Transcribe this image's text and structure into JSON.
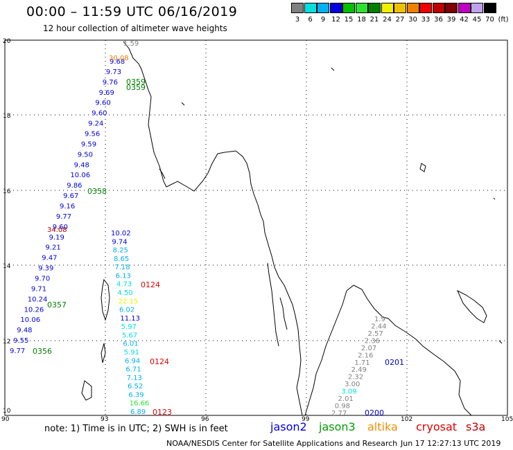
{
  "header": {
    "title": "00:00 – 11:59 UTC 06/16/2019",
    "subtitle": "12 hour collection of altimeter wave heights"
  },
  "legend": {
    "unit": "(ft)",
    "bins": [
      {
        "label": "3",
        "color": "#808080"
      },
      {
        "label": "6",
        "color": "#00e0e0"
      },
      {
        "label": "9",
        "color": "#00b0f0"
      },
      {
        "label": "12",
        "color": "#0000e0"
      },
      {
        "label": "15",
        "color": "#00c000"
      },
      {
        "label": "18",
        "color": "#30e030"
      },
      {
        "label": "21",
        "color": "#008000"
      },
      {
        "label": "24",
        "color": "#f0f000"
      },
      {
        "label": "27",
        "color": "#f0c000"
      },
      {
        "label": "30",
        "color": "#f08000"
      },
      {
        "label": "33",
        "color": "#f00000"
      },
      {
        "label": "36",
        "color": "#c00000"
      },
      {
        "label": "39",
        "color": "#800000"
      },
      {
        "label": "42",
        "color": "#c000c0"
      },
      {
        "label": "45",
        "color": "#c0a0f0"
      },
      {
        "label": "70",
        "color": "#000000"
      }
    ]
  },
  "axes": {
    "x_ticks": [
      "90",
      "93",
      "96",
      "99",
      "102",
      "105"
    ],
    "y_ticks": [
      "20",
      "18",
      "16",
      "14",
      "12",
      "10"
    ]
  },
  "satellites": [
    {
      "name": "jason2",
      "color": "#0000e0"
    },
    {
      "name": "jason3",
      "color": "#00a000"
    },
    {
      "name": "altika",
      "color": "#f09000"
    },
    {
      "name": "cryosat",
      "color": "#e00000"
    },
    {
      "name": "s3a",
      "color": "#c00000"
    }
  ],
  "track_labels": {
    "t1": [
      "9.77",
      "9.55",
      "9.48",
      "10.06",
      "10.26",
      "10.24",
      "9.71",
      "9.70",
      "9.39",
      "9.47",
      "9.21",
      "9.19",
      "9.60",
      "9.77",
      "9.16",
      "9.67",
      "9.86",
      "10.06",
      "9.48",
      "9.50",
      "9.59",
      "9.56",
      "9.24",
      "9.60",
      "9.60",
      "9.69",
      "9.76",
      "9.73",
      "9.68"
    ],
    "t2": [
      "10.02",
      "9.74",
      "8.25",
      "8.65",
      "7.18",
      "6.13",
      "4.73",
      "4.50",
      "22.15",
      "6.02",
      "11.13",
      "5.97",
      "5.67",
      "6.01",
      "5.91",
      "6.94",
      "6.71",
      "7.13",
      "6.52",
      "6.39",
      "16.66",
      "6.89"
    ],
    "t3": [
      "2.77",
      "0.98",
      "2.01",
      "3.09",
      "3.00",
      "2.32",
      "2.49",
      "1.71",
      "2.16",
      "2.07",
      "2.36",
      "2.57",
      "2.44",
      "1.9"
    ],
    "times": {
      "t0359": "0359",
      "t0358": "0358",
      "t0357": "0357",
      "t0356": "0356",
      "t0124a": "0124",
      "t0124b": "0124",
      "t0123": "0123",
      "t0201": "0201",
      "t0200": "0200",
      "t3408": "34.08",
      "t3008": "30.08",
      "t0159": "1.59"
    }
  },
  "footer": {
    "note": "note: 1) Time is in UTC; 2) SWH is in feet",
    "credit": "NOAA/NESDIS Center for Satellite Applications and Research",
    "timestamp": "Jun 17 12:27:13 UTC 2019"
  }
}
